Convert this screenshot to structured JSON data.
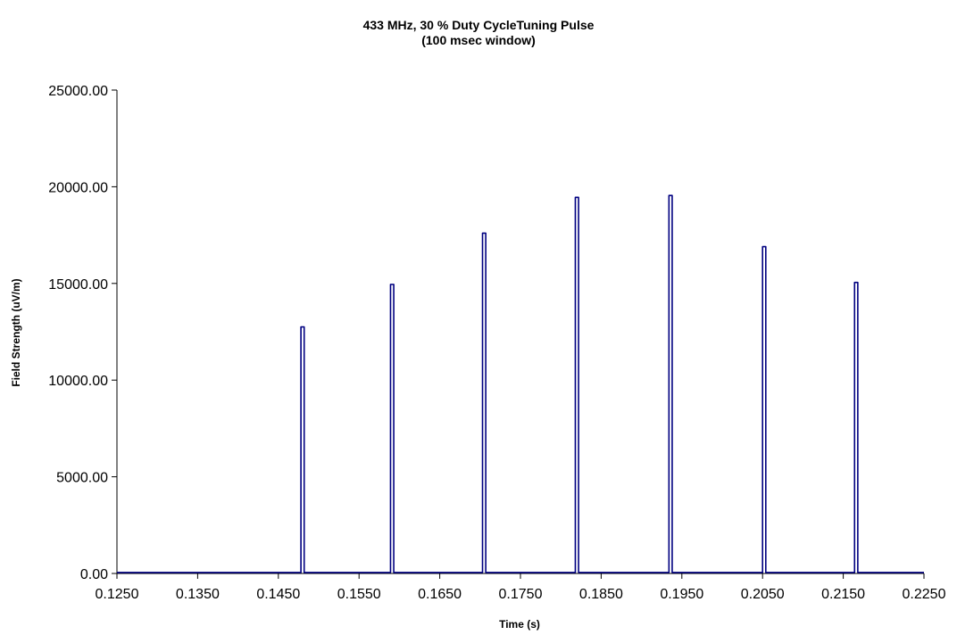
{
  "chart_data": {
    "type": "line",
    "title_lines": [
      "433 MHz, 30 % Duty CycleTuning Pulse",
      "(100 msec window)"
    ],
    "xlabel": "Time (s)",
    "ylabel": "Field Strength (uV/m)",
    "xlim": [
      0.125,
      0.225
    ],
    "ylim": [
      0,
      25000
    ],
    "x_ticks": [
      "0.1250",
      "0.1350",
      "0.1450",
      "0.1550",
      "0.1650",
      "0.1750",
      "0.1850",
      "0.1950",
      "0.2050",
      "0.2150",
      "0.2250"
    ],
    "y_ticks": [
      "0.00",
      "5000.00",
      "10000.00",
      "15000.00",
      "20000.00",
      "25000.00"
    ],
    "grid": false,
    "legend": "none",
    "baseline": 50,
    "series": [
      {
        "color": "#000080",
        "pulses": [
          {
            "start": 0.1478,
            "end": 0.1482,
            "peak": 12750
          },
          {
            "start": 0.1589,
            "end": 0.1593,
            "peak": 14950
          },
          {
            "start": 0.1703,
            "end": 0.1707,
            "peak": 17600
          },
          {
            "start": 0.1818,
            "end": 0.1822,
            "peak": 19450
          },
          {
            "start": 0.1934,
            "end": 0.1938,
            "peak": 19550
          },
          {
            "start": 0.205,
            "end": 0.2054,
            "peak": 16900
          },
          {
            "start": 0.2164,
            "end": 0.2168,
            "peak": 15050
          }
        ]
      }
    ]
  }
}
